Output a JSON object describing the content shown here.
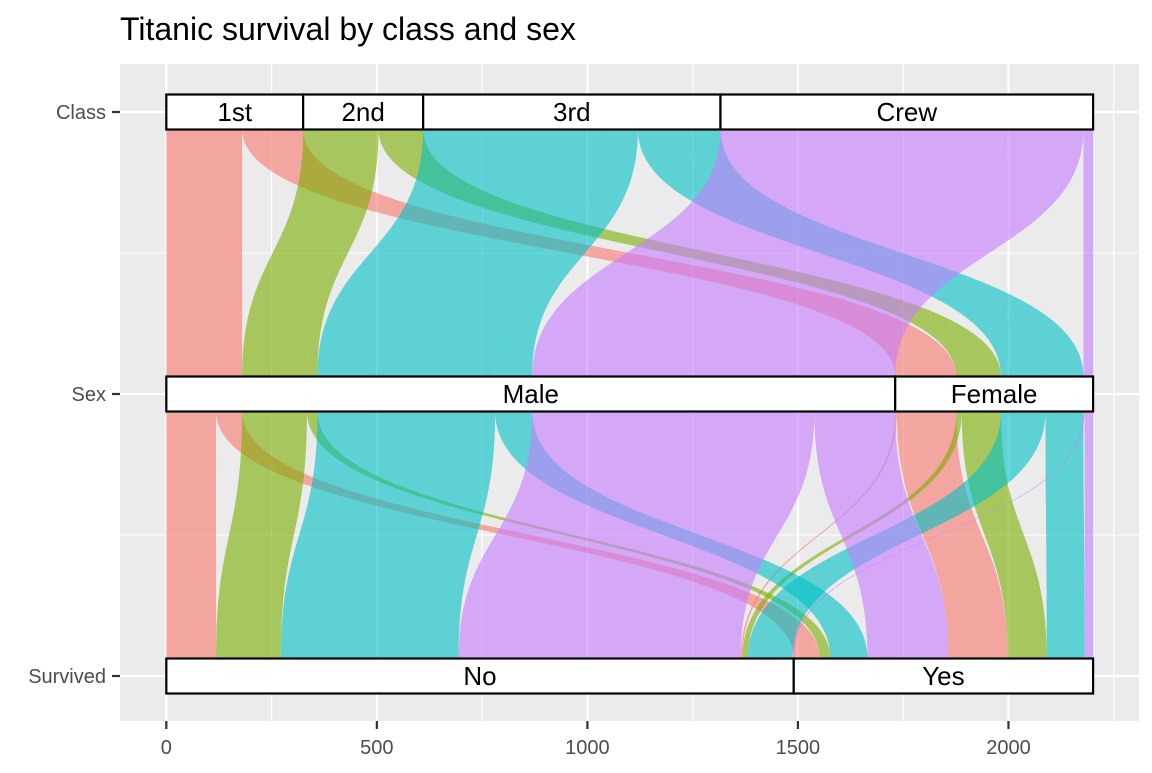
{
  "chart_data": {
    "type": "alluvial",
    "title": "Titanic survival by class and sex",
    "xlabel": "",
    "ylabel": "",
    "xlim": [
      -110,
      2310
    ],
    "x_ticks": [
      0,
      500,
      1000,
      1500,
      2000
    ],
    "x_tick_labels": [
      "0",
      "500",
      "1000",
      "1500",
      "2000"
    ],
    "axes": [
      "Class",
      "Sex",
      "Survived"
    ],
    "grid": true,
    "legend": "none",
    "colors": {
      "panel_bg": "#EBEBEB",
      "grid": "#FFFFFF",
      "1st": "#F8766D",
      "2nd": "#7CAE00",
      "3rd": "#00BFC4",
      "Crew": "#C77CFF"
    },
    "strata": {
      "Class": [
        {
          "label": "1st",
          "value": 325
        },
        {
          "label": "2nd",
          "value": 285
        },
        {
          "label": "3rd",
          "value": 706
        },
        {
          "label": "Crew",
          "value": 885
        }
      ],
      "Sex": [
        {
          "label": "Male",
          "value": 1731
        },
        {
          "label": "Female",
          "value": 470
        }
      ],
      "Survived": [
        {
          "label": "No",
          "value": 1490
        },
        {
          "label": "Yes",
          "value": 711
        }
      ]
    },
    "flows": [
      {
        "class": "1st",
        "sex": "Male",
        "survived": "No",
        "value": 118
      },
      {
        "class": "1st",
        "sex": "Male",
        "survived": "Yes",
        "value": 62
      },
      {
        "class": "1st",
        "sex": "Female",
        "survived": "No",
        "value": 4
      },
      {
        "class": "1st",
        "sex": "Female",
        "survived": "Yes",
        "value": 141
      },
      {
        "class": "2nd",
        "sex": "Male",
        "survived": "No",
        "value": 154
      },
      {
        "class": "2nd",
        "sex": "Male",
        "survived": "Yes",
        "value": 25
      },
      {
        "class": "2nd",
        "sex": "Female",
        "survived": "No",
        "value": 13
      },
      {
        "class": "2nd",
        "sex": "Female",
        "survived": "Yes",
        "value": 93
      },
      {
        "class": "3rd",
        "sex": "Male",
        "survived": "No",
        "value": 422
      },
      {
        "class": "3rd",
        "sex": "Male",
        "survived": "Yes",
        "value": 88
      },
      {
        "class": "3rd",
        "sex": "Female",
        "survived": "No",
        "value": 106
      },
      {
        "class": "3rd",
        "sex": "Female",
        "survived": "Yes",
        "value": 90
      },
      {
        "class": "Crew",
        "sex": "Male",
        "survived": "No",
        "value": 670
      },
      {
        "class": "Crew",
        "sex": "Male",
        "survived": "Yes",
        "value": 192
      },
      {
        "class": "Crew",
        "sex": "Female",
        "survived": "No",
        "value": 3
      },
      {
        "class": "Crew",
        "sex": "Female",
        "survived": "Yes",
        "value": 20
      }
    ]
  }
}
